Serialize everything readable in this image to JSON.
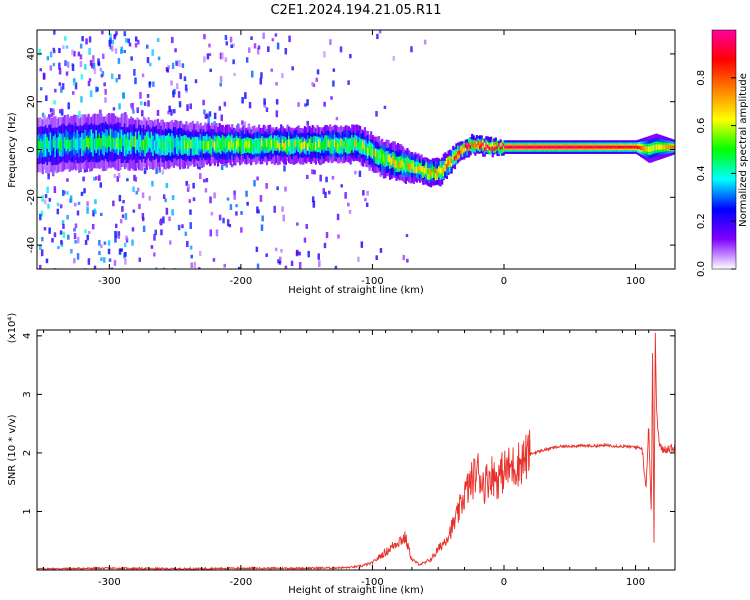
{
  "title": "C2E1.2024.194.21.05.R11",
  "chart_data": [
    {
      "type": "heatmap",
      "xlabel": "Height of straight line (km)",
      "ylabel": "Frequency (Hz)",
      "xlim": [
        -355,
        130
      ],
      "ylim": [
        -50,
        50
      ],
      "xticks": [
        -300,
        -200,
        -100,
        0,
        100
      ],
      "yticks": [
        -40,
        -20,
        0,
        20,
        40
      ],
      "colorbar": {
        "label": "Normalized spectral amplitude",
        "range": [
          0,
          1
        ],
        "ticks": [
          0.0,
          0.2,
          0.4,
          0.6,
          0.8
        ],
        "colors": [
          "#ffffff",
          "#8000ff",
          "#0000ff",
          "#00ffff",
          "#00ff00",
          "#ffff00",
          "#ff8000",
          "#ff0000",
          "#ff00a0"
        ]
      },
      "ridge": {
        "x": [
          -355,
          -300,
          -250,
          -200,
          -150,
          -110,
          -95,
          -80,
          -65,
          -55,
          -48,
          -40,
          -32,
          -25,
          -15,
          0,
          50,
          80,
          100,
          110,
          115,
          130
        ],
        "y": [
          2,
          3,
          2,
          2,
          2,
          2,
          -3,
          -6,
          -8,
          -10,
          -9,
          -4,
          0,
          2,
          1,
          1,
          1,
          1,
          1,
          0,
          1,
          1
        ],
        "amp": [
          0.4,
          0.45,
          0.45,
          0.55,
          0.55,
          0.55,
          0.55,
          0.6,
          0.62,
          0.65,
          0.7,
          0.75,
          0.8,
          0.85,
          0.9,
          0.95,
          0.95,
          0.92,
          0.9,
          0.6,
          0.6,
          0.8
        ],
        "width": [
          6,
          6,
          5,
          4,
          4,
          4,
          4,
          4,
          3,
          3,
          3,
          2.5,
          2,
          2,
          2,
          1.5,
          1.5,
          1.5,
          1.5,
          3,
          3,
          1.5
        ]
      }
    },
    {
      "type": "line",
      "xlabel": "Height of straight line (km)",
      "ylabel": "SNR (10 * v/v)",
      "y_multiplier": "(x10⁴)",
      "xlim": [
        -355,
        130
      ],
      "ylim": [
        0,
        4.1
      ],
      "xticks": [
        -300,
        -200,
        -100,
        0,
        100
      ],
      "yticks": [
        1,
        2,
        3,
        4
      ],
      "color": "#e8302a",
      "series": [
        {
          "x": [
            -355,
            -300,
            -250,
            -200,
            -150,
            -120,
            -110,
            -100,
            -95,
            -90,
            -85,
            -80,
            -75,
            -70,
            -65,
            -60,
            -55,
            -50,
            -45,
            -40,
            -35,
            -30,
            -25,
            -20,
            -15,
            -10,
            -5,
            0,
            5,
            10,
            15,
            20,
            30,
            40,
            50,
            60,
            70,
            80,
            90,
            100,
            105,
            108,
            110,
            112,
            113,
            114,
            115,
            116,
            118,
            120,
            125,
            130
          ],
          "y": [
            0.02,
            0.03,
            0.02,
            0.03,
            0.03,
            0.04,
            0.06,
            0.12,
            0.22,
            0.3,
            0.4,
            0.5,
            0.55,
            0.18,
            0.1,
            0.12,
            0.2,
            0.35,
            0.5,
            0.7,
            0.95,
            1.3,
            1.5,
            1.7,
            1.45,
            1.65,
            1.55,
            1.7,
            1.75,
            1.8,
            1.9,
            1.98,
            2.05,
            2.1,
            2.12,
            2.12,
            2.12,
            2.13,
            2.11,
            2.1,
            2.08,
            1.4,
            2.5,
            0.9,
            3.9,
            0.5,
            4.05,
            2.7,
            2.15,
            2.05,
            2.08,
            2.08
          ]
        }
      ]
    }
  ]
}
